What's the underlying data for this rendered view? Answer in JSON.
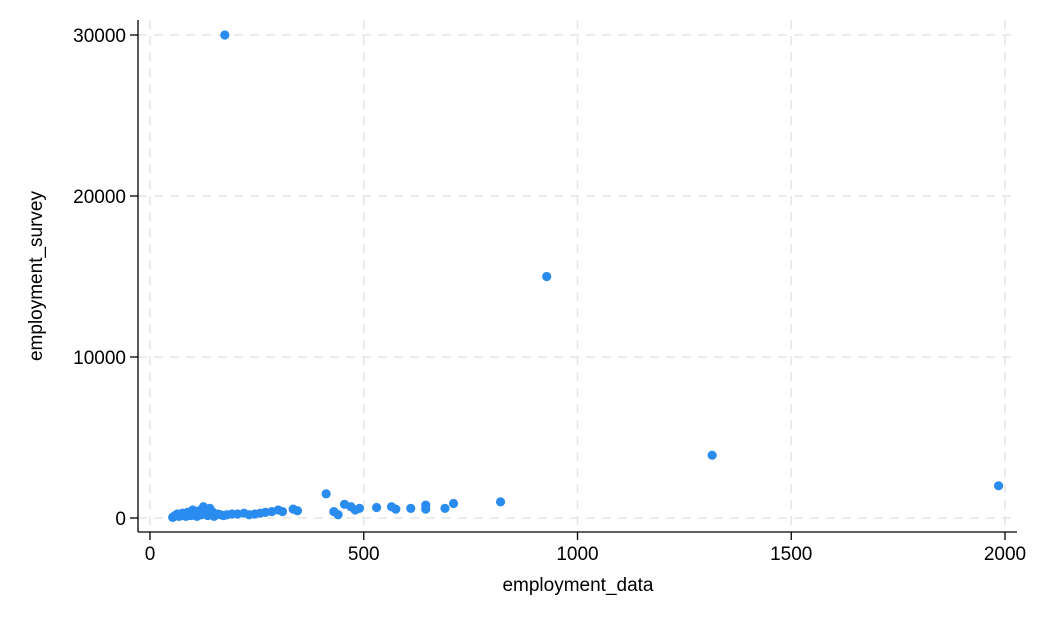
{
  "chart_data": {
    "type": "scatter",
    "title": "",
    "xlabel": "employment_data",
    "ylabel": "employment_survey",
    "xlim": [
      0,
      2000
    ],
    "ylim": [
      0,
      30000
    ],
    "xticks": [
      0,
      500,
      1000,
      1500,
      2000
    ],
    "yticks": [
      0,
      10000,
      20000,
      30000
    ],
    "grid": true,
    "marker_color": "#2b8cf0",
    "series": [
      {
        "points": [
          [
            175,
            30000
          ],
          [
            928,
            15000
          ],
          [
            1315,
            3900
          ],
          [
            1985,
            2000
          ],
          [
            820,
            1000
          ],
          [
            412,
            1500
          ],
          [
            710,
            900
          ],
          [
            690,
            600
          ],
          [
            645,
            800
          ],
          [
            645,
            550
          ],
          [
            610,
            600
          ],
          [
            575,
            550
          ],
          [
            565,
            700
          ],
          [
            530,
            650
          ],
          [
            490,
            600
          ],
          [
            480,
            500
          ],
          [
            470,
            700
          ],
          [
            455,
            850
          ],
          [
            440,
            200
          ],
          [
            430,
            400
          ],
          [
            345,
            450
          ],
          [
            335,
            550
          ],
          [
            310,
            400
          ],
          [
            300,
            500
          ],
          [
            285,
            400
          ],
          [
            270,
            350
          ],
          [
            258,
            300
          ],
          [
            245,
            250
          ],
          [
            232,
            200
          ],
          [
            220,
            300
          ],
          [
            205,
            250
          ],
          [
            192,
            250
          ],
          [
            180,
            200
          ],
          [
            172,
            150
          ],
          [
            165,
            200
          ],
          [
            158,
            250
          ],
          [
            150,
            100
          ],
          [
            145,
            400
          ],
          [
            140,
            600
          ],
          [
            135,
            150
          ],
          [
            130,
            300
          ],
          [
            125,
            700
          ],
          [
            120,
            200
          ],
          [
            115,
            450
          ],
          [
            110,
            100
          ],
          [
            105,
            300
          ],
          [
            100,
            500
          ],
          [
            96,
            150
          ],
          [
            92,
            250
          ],
          [
            88,
            350
          ],
          [
            84,
            100
          ],
          [
            80,
            200
          ],
          [
            76,
            300
          ],
          [
            72,
            150
          ],
          [
            68,
            100
          ],
          [
            64,
            250
          ],
          [
            60,
            180
          ],
          [
            57,
            120
          ],
          [
            55,
            80
          ],
          [
            53,
            40
          ]
        ]
      }
    ]
  }
}
